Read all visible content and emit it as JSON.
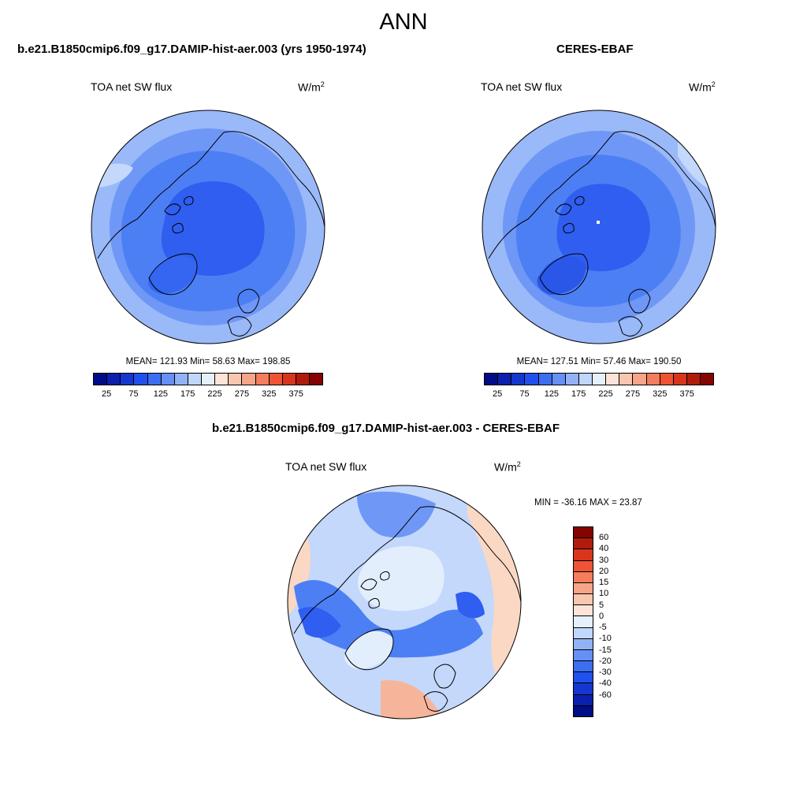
{
  "main_title": "ANN",
  "panels": [
    {
      "title": "b.e21.B1850cmip6.f09_g17.DAMIP-hist-aer.003 (yrs 1950-1974)",
      "variable": "TOA net SW flux",
      "unit_base": "W/m",
      "unit_sup": "2",
      "stats": "MEAN= 121.93  Min=  58.63  Max= 198.85"
    },
    {
      "title": "CERES-EBAF",
      "variable": "TOA net SW flux",
      "unit_base": "W/m",
      "unit_sup": "2",
      "stats": "MEAN= 127.51  Min=  57.46  Max= 190.50"
    },
    {
      "title": "b.e21.B1850cmip6.f09_g17.DAMIP-hist-aer.003 - CERES-EBAF",
      "variable": "TOA net SW flux",
      "unit_base": "W/m",
      "unit_sup": "2",
      "stats": "MIN = -36.16 MAX =  23.87"
    }
  ],
  "colorbar_abs": {
    "colors": [
      "#000d86",
      "#0b20ad",
      "#1537d0",
      "#2050ed",
      "#3c6ef2",
      "#6690f5",
      "#92b2f8",
      "#c0d6fb",
      "#e6f0fd",
      "#fde4d6",
      "#f9c6b0",
      "#f6a588",
      "#f37d5c",
      "#ee5434",
      "#d8361c",
      "#b01c0c",
      "#850300"
    ],
    "tick_labels": [
      "25",
      "75",
      "125",
      "175",
      "225",
      "275",
      "325",
      "375"
    ]
  },
  "colorbar_diff": {
    "colors": [
      "#850300",
      "#b01c0c",
      "#d8361c",
      "#ee5434",
      "#f37d5c",
      "#f6a588",
      "#f9c6b0",
      "#fde4d6",
      "#e6f0fd",
      "#c0d6fb",
      "#92b2f8",
      "#6690f5",
      "#3c6ef2",
      "#2050ed",
      "#1537d0",
      "#0b20ad",
      "#000d86"
    ],
    "tick_labels": [
      "60",
      "40",
      "30",
      "20",
      "15",
      "10",
      "5",
      "0",
      "-5",
      "-10",
      "-15",
      "-20",
      "-30",
      "-40",
      "-60"
    ]
  },
  "map_colors": {
    "deep": "#2f5ef0",
    "mid": "#4d7ff4",
    "light": "#6f97f6",
    "pale": "#9ab9f9",
    "verypale": "#c3d8fb",
    "near_zero": "#e3eefd",
    "warm1": "#fbd8c4",
    "warm2": "#f6b59a",
    "coast": "#000000"
  }
}
